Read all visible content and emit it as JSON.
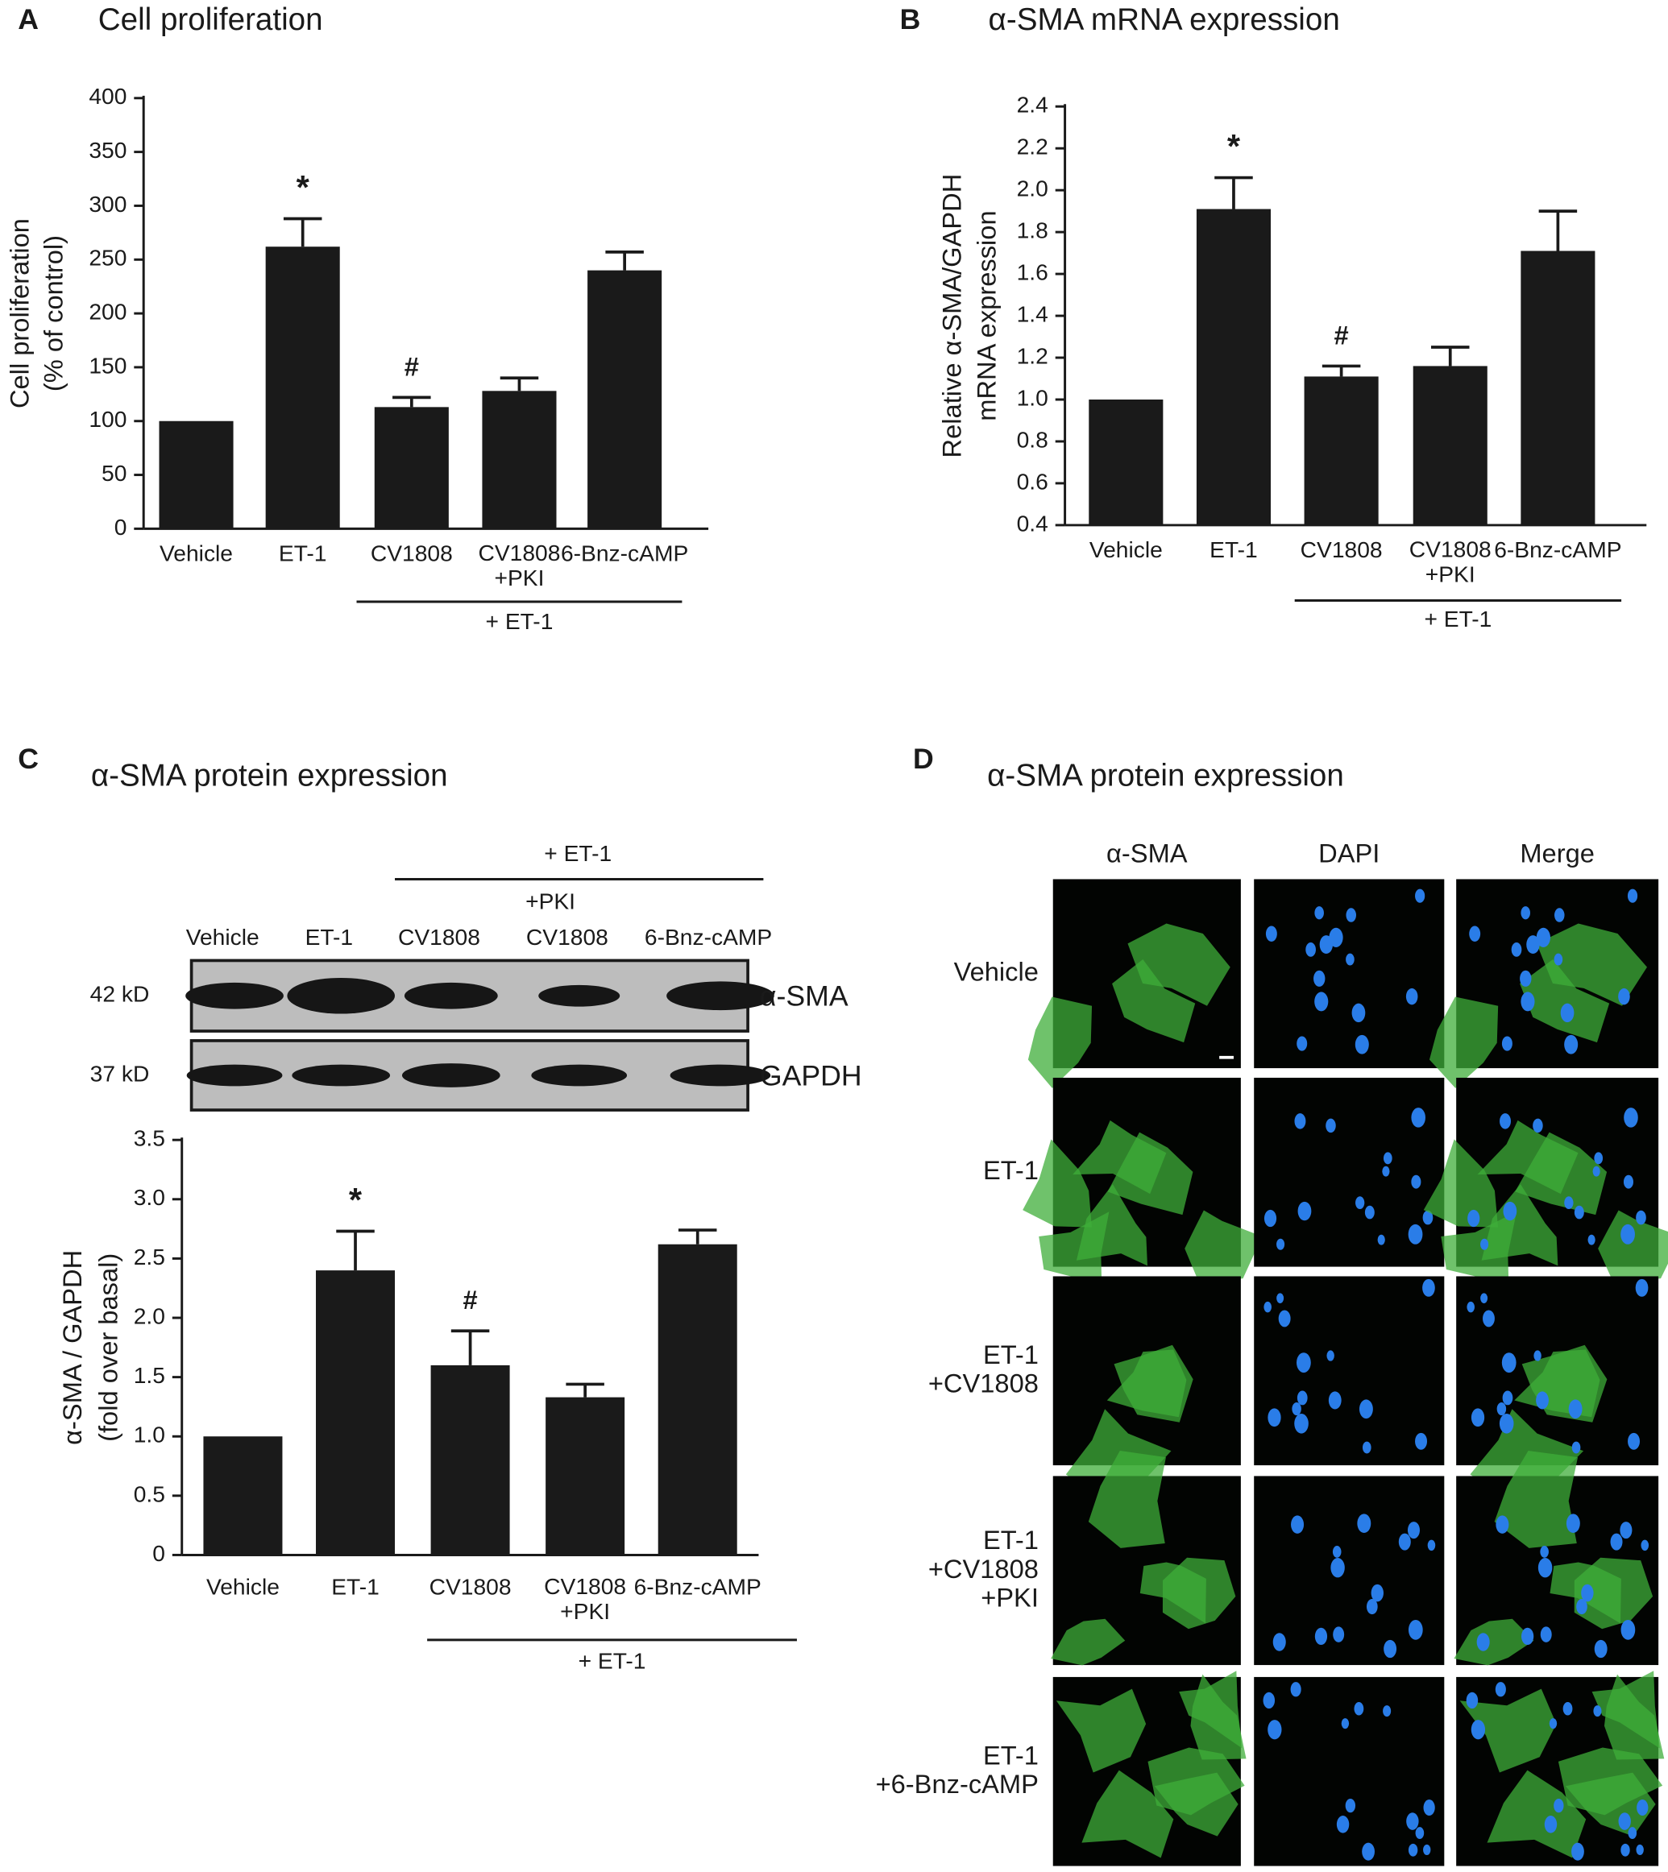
{
  "chart_data": [
    {
      "type": "bar",
      "panel": "A",
      "title": "Cell proliferation",
      "ylabel": "Cell proliferation\n(% of control)",
      "categories": [
        "Vehicle",
        "ET-1",
        "CV1808",
        "CV1808\n+PKI",
        "6-Bnz-cAMP"
      ],
      "values": [
        100,
        262,
        113,
        128,
        240
      ],
      "errors": [
        null,
        26,
        9,
        12,
        17
      ],
      "markers": [
        null,
        "*",
        "#",
        null,
        null
      ],
      "group_label": "+ ET-1",
      "color": "#1a1a1a",
      "ylim": [
        0,
        400
      ],
      "yticks": [
        0,
        50,
        100,
        150,
        200,
        250,
        300,
        350,
        400
      ]
    },
    {
      "type": "bar",
      "panel": "B",
      "title": "α-SMA mRNA expression",
      "ylabel": "Relative α-SMA/GAPDH\nmRNA expression",
      "categories": [
        "Vehicle",
        "ET-1",
        "CV1808",
        "CV1808\n+PKI",
        "6-Bnz-cAMP"
      ],
      "values": [
        1.0,
        1.91,
        1.11,
        1.16,
        1.71
      ],
      "errors": [
        null,
        0.15,
        0.05,
        0.09,
        0.19
      ],
      "markers": [
        null,
        "*",
        "#",
        null,
        null
      ],
      "group_label": "+ ET-1",
      "color": "#1a1a1a",
      "ylim": [
        0.4,
        2.4
      ],
      "yticks": [
        0.4,
        0.6,
        0.8,
        {
          "value": 1,
          "label": "1.0"
        },
        1.2,
        1.4,
        1.6,
        1.8,
        {
          "value": 2,
          "label": "2.0"
        },
        2.2,
        2.4
      ]
    },
    {
      "type": "bar",
      "panel": "C",
      "title": "α-SMA protein expression",
      "ylabel": "α-SMA / GAPDH\n(fold over basal)",
      "categories": [
        "Vehicle",
        "ET-1",
        "CV1808",
        "CV1808\n+PKI",
        "6-Bnz-cAMP"
      ],
      "values": [
        1.0,
        2.4,
        1.6,
        1.33,
        2.62
      ],
      "errors": [
        null,
        0.33,
        0.29,
        0.11,
        0.12
      ],
      "markers": [
        null,
        "*",
        "#",
        null,
        null
      ],
      "group_label": "+ ET-1",
      "color": "#1a1a1a",
      "ylim": [
        0,
        3.5
      ],
      "yticks": [
        0,
        0.5,
        {
          "value": 1,
          "label": "1.0"
        },
        1.5,
        {
          "value": 2,
          "label": "2.0"
        },
        2.5,
        {
          "value": 3,
          "label": "3.0"
        },
        3.5
      ]
    }
  ],
  "blot": {
    "treatment": "+ ET-1",
    "inhibitor": "+PKI",
    "lanes": [
      "Vehicle",
      "ET-1",
      "CV1808",
      "CV1808",
      "6-Bnz-cAMP"
    ],
    "rows": [
      {
        "weight": "42 kD",
        "protein": "α-SMA"
      },
      {
        "weight": "37 kD",
        "protein": "GAPDH"
      }
    ]
  },
  "panel_d": {
    "panel": "D",
    "title": "α-SMA protein expression",
    "columns": [
      "α-SMA",
      "DAPI",
      "Merge"
    ],
    "rows": [
      "Vehicle",
      "ET-1",
      "ET-1\n+CV1808",
      "ET-1\n+CV1808\n+PKI",
      "ET-1\n+6-Bnz-cAMP"
    ]
  }
}
